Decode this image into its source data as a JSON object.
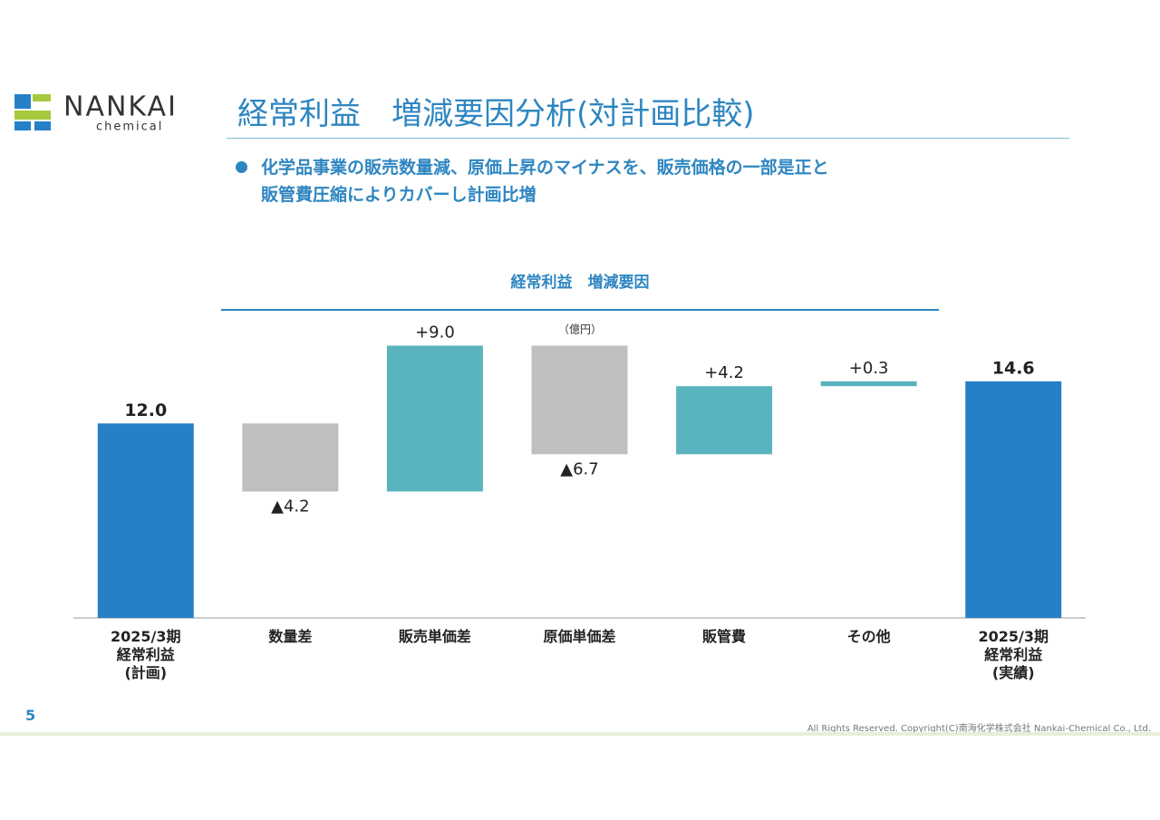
{
  "header": {
    "logo": "NANKAI",
    "logo_sub": "chemical",
    "title": "経常利益　増減要因分析(対計画比較)"
  },
  "bullet": "化学品事業の販売数量減、原価上昇のマイナスを、販売価格の一部是正と\n販管費圧縮によりカバーし計画比増",
  "chart_data": {
    "type": "waterfall",
    "title": "経常利益　増減要因",
    "unit": "（億円）",
    "categories": [
      "2025/3期\n経常利益\n(計画)",
      "数量差",
      "販売単価差",
      "原価単価差",
      "販管費",
      "その他",
      "2025/3期\n経常利益\n(実績)"
    ],
    "values": [
      12.0,
      -4.2,
      9.0,
      -6.7,
      4.2,
      0.3,
      14.6
    ],
    "value_labels": [
      "12.0",
      "▲4.2",
      "+9.0",
      "▲6.7",
      "+4.2",
      "+0.3",
      "14.6"
    ],
    "total_color": "#2680c8",
    "increase_color": "#5ab4bf",
    "decrease_color": "#bfbfbf",
    "ylim": [
      0,
      18
    ]
  },
  "footer": {
    "page": "5",
    "copyright": "All Rights Reserved. Copyright(C)南海化学株式会社 Nankai-Chemical Co., Ltd."
  }
}
